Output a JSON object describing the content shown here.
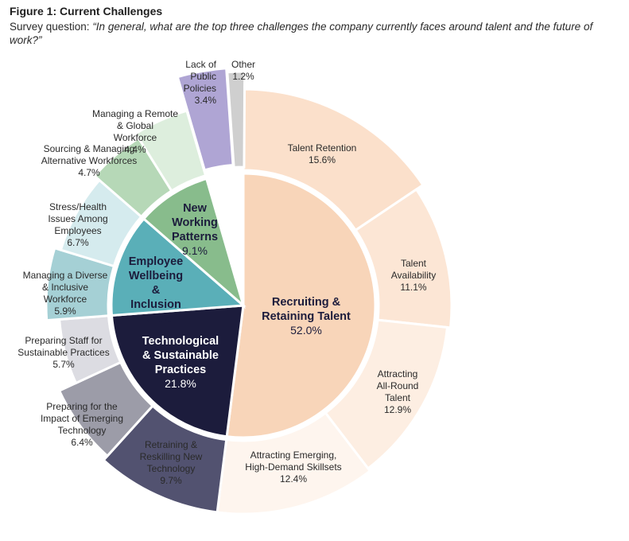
{
  "figure": {
    "title": "Figure 1:  Current Challenges",
    "subtitle_prefix": "Survey question: ",
    "question": "“In general, what are the top three challenges the company currently faces around talent and the future of work?”"
  },
  "chart_data": {
    "type": "pie",
    "subtype": "sunburst",
    "unit": "%",
    "inner": [
      {
        "label": "Recruiting & Retaining Talent",
        "value": 52.0,
        "value_text": "52.0%",
        "color": "#f8d5b9"
      },
      {
        "label": "Technological & Sustainable Practices",
        "value": 21.8,
        "value_text": "21.8%",
        "color": "#1c1c3c"
      },
      {
        "label": "Employee Wellbeing & Inclusion",
        "value": 12.6,
        "value_text": "12.6%",
        "color": "#5aafb8"
      },
      {
        "label": "New Working Patterns",
        "value": 9.1,
        "value_text": "9.1%",
        "color": "#88bc8c"
      }
    ],
    "outer": [
      {
        "label": "Talent Retention",
        "value": 15.6,
        "value_text": "15.6%",
        "parent": 0,
        "color": "#fbe0cb"
      },
      {
        "label": "Talent Availability",
        "value": 11.1,
        "value_text": "11.1%",
        "parent": 0,
        "color": "#fce6d5"
      },
      {
        "label": "Attracting All-Round Talent",
        "value": 12.9,
        "value_text": "12.9%",
        "parent": 0,
        "color": "#fdeee2"
      },
      {
        "label": "Attracting Emerging, High-Demand Skillsets",
        "value": 12.4,
        "value_text": "12.4%",
        "parent": 0,
        "color": "#fef5ee"
      },
      {
        "label": "Retraining & Reskilling New Technology",
        "value": 9.7,
        "value_text": "9.7%",
        "parent": 1,
        "color": "#525270"
      },
      {
        "label": "Preparing for the Impact of Emerging Technology",
        "value": 6.4,
        "value_text": "6.4%",
        "parent": 1,
        "color": "#9c9ca8"
      },
      {
        "label": "Preparing Staff for Sustainable Practices",
        "value": 5.7,
        "value_text": "5.7%",
        "parent": 1,
        "color": "#dcdce2"
      },
      {
        "label": "Managing a Diverse & Inclusive Workforce",
        "value": 5.9,
        "value_text": "5.9%",
        "parent": 2,
        "color": "#a5d0d5"
      },
      {
        "label": "Stress/Health Issues Among Employees",
        "value": 6.7,
        "value_text": "6.7%",
        "parent": 2,
        "color": "#d5ebee"
      },
      {
        "label": "Sourcing & Managing Alternative Workforces",
        "value": 4.7,
        "value_text": "4.7%",
        "parent": 3,
        "color": "#b6d8b7"
      },
      {
        "label": "Managing a Remote & Global Workforce",
        "value": 4.4,
        "value_text": "4.4%",
        "parent": 3,
        "color": "#ddeedd"
      },
      {
        "label": "Lack of Public Policies",
        "value": 3.4,
        "value_text": "3.4%",
        "parent": null,
        "color": "#afa5d4"
      },
      {
        "label": "Other",
        "value": 1.2,
        "value_text": "1.2%",
        "parent": null,
        "color": "#cfcfcf"
      }
    ]
  }
}
